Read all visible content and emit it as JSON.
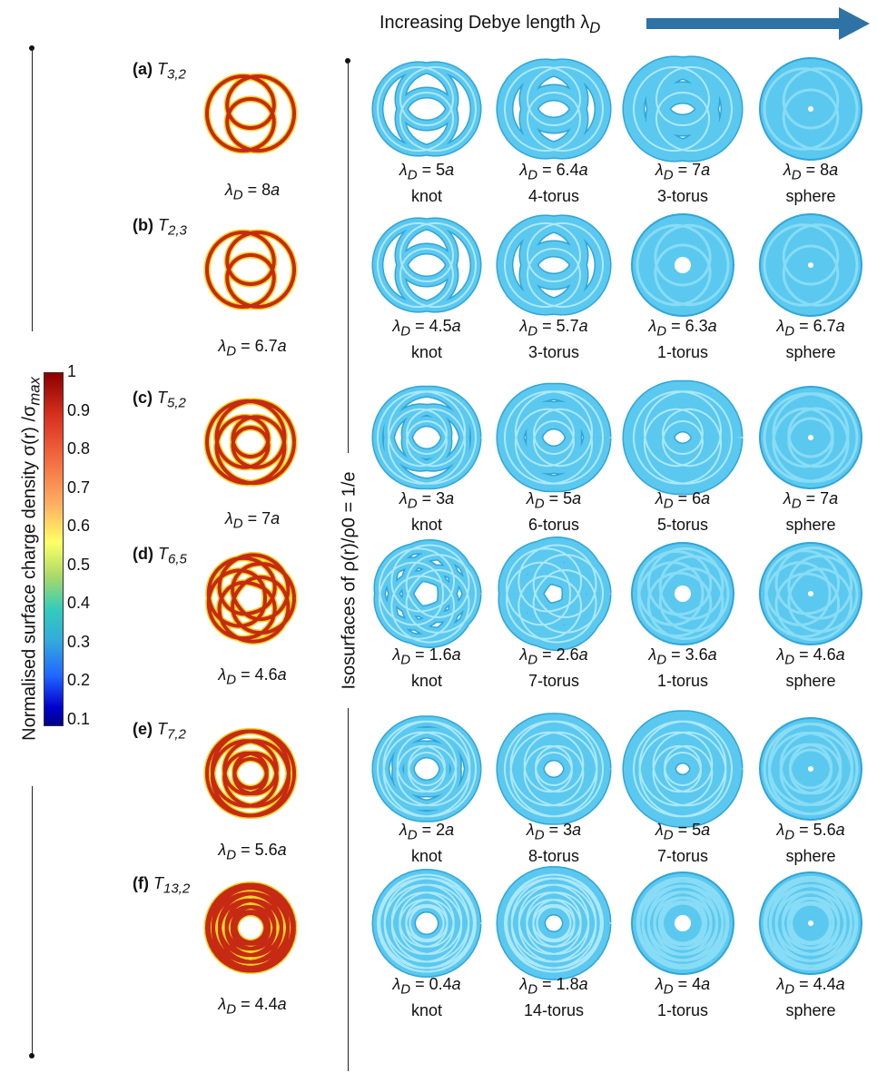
{
  "header": {
    "text": "Increasing Debye length λ",
    "subscript": "D"
  },
  "colors": {
    "arrow": "#2f72a6",
    "iso_fill": "#5bc8ef",
    "iso_edge": "#2fa5d8",
    "knot_red": "#c62a14",
    "knot_yellow": "#f0d020"
  },
  "colorbar": {
    "title": "Normalised surface charge density σ(r) /σ",
    "title_sub": "max",
    "ticks": [
      "1",
      "0.9",
      "0.8",
      "0.7",
      "0.6",
      "0.5",
      "0.4",
      "0.3",
      "0.2",
      "0.1"
    ]
  },
  "iso_axis_label": "Isosurfaces of ρ(r)/ρ0 = 1/e",
  "rows": [
    {
      "id": "a",
      "label": "(a)",
      "knot": "T3,2",
      "knot_lambda": "λD = 8a",
      "panels": [
        {
          "lambda": "λD = 5a",
          "type": "knot"
        },
        {
          "lambda": "λD = 6.4a",
          "type": "4-torus"
        },
        {
          "lambda": "λD = 7a",
          "type": "3-torus"
        },
        {
          "lambda": "λD = 8a",
          "type": "sphere"
        }
      ]
    },
    {
      "id": "b",
      "label": "(b)",
      "knot": "T2,3",
      "knot_lambda": "λD = 6.7a",
      "panels": [
        {
          "lambda": "λD = 4.5a",
          "type": "knot"
        },
        {
          "lambda": "λD = 5.7a",
          "type": "3-torus"
        },
        {
          "lambda": "λD = 6.3a",
          "type": "1-torus"
        },
        {
          "lambda": "λD = 6.7a",
          "type": "sphere"
        }
      ]
    },
    {
      "id": "c",
      "label": "(c)",
      "knot": "T5,2",
      "knot_lambda": "λD = 7a",
      "panels": [
        {
          "lambda": "λD = 3a",
          "type": "knot"
        },
        {
          "lambda": "λD = 5a",
          "type": "6-torus"
        },
        {
          "lambda": "λD = 6a",
          "type": "5-torus"
        },
        {
          "lambda": "λD = 7a",
          "type": "sphere"
        }
      ]
    },
    {
      "id": "d",
      "label": "(d)",
      "knot": "T6,5",
      "knot_lambda": "λD = 4.6a",
      "panels": [
        {
          "lambda": "λD = 1.6a",
          "type": "knot"
        },
        {
          "lambda": "λD = 2.6a",
          "type": "7-torus"
        },
        {
          "lambda": "λD = 3.6a",
          "type": "1-torus"
        },
        {
          "lambda": "λD = 4.6a",
          "type": "sphere"
        }
      ]
    },
    {
      "id": "e",
      "label": "(e)",
      "knot": "T7,2",
      "knot_lambda": "λD = 5.6a",
      "panels": [
        {
          "lambda": "λD = 2a",
          "type": "knot"
        },
        {
          "lambda": "λD = 3a",
          "type": "8-torus"
        },
        {
          "lambda": "λD = 5a",
          "type": "7-torus"
        },
        {
          "lambda": "λD = 5.6a",
          "type": "sphere"
        }
      ]
    },
    {
      "id": "f",
      "label": "(f)",
      "knot": "T13,2",
      "knot_lambda": "λD = 4.4a",
      "panels": [
        {
          "lambda": "λD = 0.4a",
          "type": "knot"
        },
        {
          "lambda": "λD = 1.8a",
          "type": "14-torus"
        },
        {
          "lambda": "λD = 4a",
          "type": "1-torus"
        },
        {
          "lambda": "λD = 4.4a",
          "type": "sphere"
        }
      ]
    }
  ]
}
